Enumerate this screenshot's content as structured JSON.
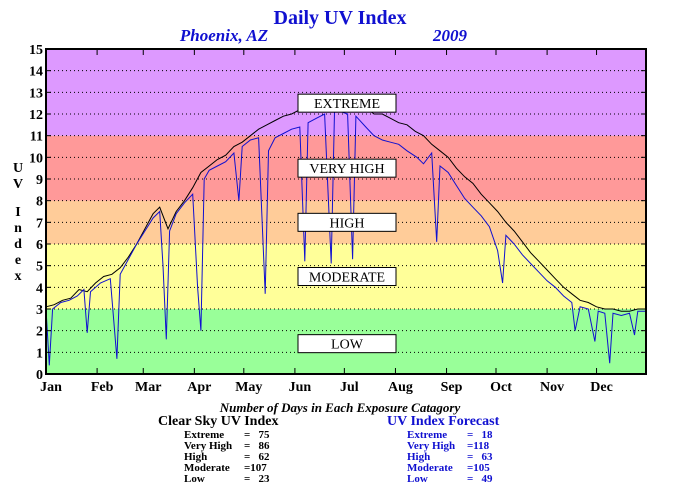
{
  "chart_data": {
    "type": "line",
    "title": "Daily UV Index",
    "location": "Phoenix, AZ",
    "year": "2009",
    "ylabel": "UV Index",
    "ylim": [
      0,
      15
    ],
    "yticks": [
      0,
      1,
      2,
      3,
      4,
      5,
      6,
      7,
      8,
      9,
      10,
      11,
      12,
      13,
      14,
      15
    ],
    "xlim": [
      1,
      365
    ],
    "months": [
      "Jan",
      "Feb",
      "Mar",
      "Apr",
      "May",
      "Jun",
      "Jul",
      "Aug",
      "Sep",
      "Oct",
      "Nov",
      "Dec"
    ],
    "month_start_days": [
      1,
      32,
      60,
      91,
      121,
      152,
      182,
      213,
      244,
      274,
      305,
      335
    ],
    "grid": "dotted horizontal",
    "bands": [
      {
        "label": "LOW",
        "from": 0,
        "to": 3,
        "color": "#99ff99",
        "label_at": 1.4
      },
      {
        "label": "MODERATE",
        "from": 3,
        "to": 6,
        "color": "#ffff99",
        "label_at": 4.5
      },
      {
        "label": "HIGH",
        "from": 6,
        "to": 8,
        "color": "#ffcc99",
        "label_at": 7.0
      },
      {
        "label": "VERY HIGH",
        "from": 8,
        "to": 11,
        "color": "#ff9999",
        "label_at": 9.5
      },
      {
        "label": "EXTREME",
        "from": 11,
        "to": 15,
        "color": "#dd99ff",
        "label_at": 12.5
      }
    ],
    "series": [
      {
        "name": "Clear Sky UV Index",
        "color": "#000000",
        "points": [
          [
            1,
            3.1
          ],
          [
            6,
            3.2
          ],
          [
            11,
            3.4
          ],
          [
            16,
            3.5
          ],
          [
            21,
            3.9
          ],
          [
            26,
            3.8
          ],
          [
            31,
            4.2
          ],
          [
            36,
            4.5
          ],
          [
            41,
            4.6
          ],
          [
            46,
            4.9
          ],
          [
            51,
            5.4
          ],
          [
            56,
            6.0
          ],
          [
            61,
            6.7
          ],
          [
            66,
            7.4
          ],
          [
            70,
            7.7
          ],
          [
            75,
            6.7
          ],
          [
            80,
            7.5
          ],
          [
            85,
            8.0
          ],
          [
            90,
            8.6
          ],
          [
            95,
            9.3
          ],
          [
            100,
            9.6
          ],
          [
            105,
            9.9
          ],
          [
            110,
            10.1
          ],
          [
            115,
            10.5
          ],
          [
            120,
            10.7
          ],
          [
            125,
            11.0
          ],
          [
            130,
            11.3
          ],
          [
            135,
            11.5
          ],
          [
            140,
            11.7
          ],
          [
            145,
            11.9
          ],
          [
            150,
            12.0
          ],
          [
            155,
            12.2
          ],
          [
            160,
            12.4
          ],
          [
            165,
            12.5
          ],
          [
            170,
            12.6
          ],
          [
            175,
            12.7
          ],
          [
            180,
            12.8
          ],
          [
            185,
            12.6
          ],
          [
            190,
            12.5
          ],
          [
            195,
            12.3
          ],
          [
            200,
            12.0
          ],
          [
            205,
            12.0
          ],
          [
            210,
            11.8
          ],
          [
            215,
            11.6
          ],
          [
            220,
            11.5
          ],
          [
            225,
            11.2
          ],
          [
            230,
            11.0
          ],
          [
            235,
            10.6
          ],
          [
            240,
            10.3
          ],
          [
            245,
            10.0
          ],
          [
            250,
            9.5
          ],
          [
            255,
            9.1
          ],
          [
            260,
            8.8
          ],
          [
            265,
            8.3
          ],
          [
            270,
            7.9
          ],
          [
            275,
            7.5
          ],
          [
            280,
            7.0
          ],
          [
            285,
            6.6
          ],
          [
            290,
            6.1
          ],
          [
            295,
            5.6
          ],
          [
            300,
            5.2
          ],
          [
            305,
            4.8
          ],
          [
            310,
            4.4
          ],
          [
            315,
            4.0
          ],
          [
            320,
            3.7
          ],
          [
            325,
            3.4
          ],
          [
            330,
            3.3
          ],
          [
            335,
            3.1
          ],
          [
            340,
            3.0
          ],
          [
            345,
            3.0
          ],
          [
            350,
            2.9
          ],
          [
            355,
            2.9
          ],
          [
            360,
            3.0
          ],
          [
            365,
            3.0
          ]
        ]
      },
      {
        "name": "UV Index Forecast",
        "color": "#1010d0",
        "points": [
          [
            1,
            3.0
          ],
          [
            3,
            0.4
          ],
          [
            5,
            3.0
          ],
          [
            10,
            3.3
          ],
          [
            15,
            3.4
          ],
          [
            20,
            3.6
          ],
          [
            24,
            3.9
          ],
          [
            26,
            1.9
          ],
          [
            28,
            3.8
          ],
          [
            34,
            4.2
          ],
          [
            40,
            4.4
          ],
          [
            44,
            0.7
          ],
          [
            46,
            4.6
          ],
          [
            51,
            5.3
          ],
          [
            56,
            6.0
          ],
          [
            61,
            6.6
          ],
          [
            66,
            7.2
          ],
          [
            70,
            7.5
          ],
          [
            72,
            5.0
          ],
          [
            74,
            1.6
          ],
          [
            76,
            6.6
          ],
          [
            80,
            7.4
          ],
          [
            85,
            7.9
          ],
          [
            90,
            8.3
          ],
          [
            93,
            4.0
          ],
          [
            95,
            2.0
          ],
          [
            97,
            9.0
          ],
          [
            100,
            9.4
          ],
          [
            105,
            9.6
          ],
          [
            110,
            9.8
          ],
          [
            115,
            10.2
          ],
          [
            118,
            8.0
          ],
          [
            120,
            10.5
          ],
          [
            125,
            10.8
          ],
          [
            130,
            10.9
          ],
          [
            134,
            3.7
          ],
          [
            136,
            10.3
          ],
          [
            140,
            10.9
          ],
          [
            145,
            11.1
          ],
          [
            150,
            11.3
          ],
          [
            155,
            11.4
          ],
          [
            158,
            5.2
          ],
          [
            160,
            11.6
          ],
          [
            165,
            11.8
          ],
          [
            170,
            12.0
          ],
          [
            174,
            5.1
          ],
          [
            176,
            12.1
          ],
          [
            180,
            12.1
          ],
          [
            184,
            12.0
          ],
          [
            187,
            5.3
          ],
          [
            189,
            11.9
          ],
          [
            195,
            11.4
          ],
          [
            200,
            11.0
          ],
          [
            205,
            10.8
          ],
          [
            210,
            10.7
          ],
          [
            215,
            10.6
          ],
          [
            220,
            10.3
          ],
          [
            226,
            10.0
          ],
          [
            230,
            9.7
          ],
          [
            235,
            10.2
          ],
          [
            238,
            6.1
          ],
          [
            240,
            9.6
          ],
          [
            245,
            9.3
          ],
          [
            250,
            8.7
          ],
          [
            255,
            8.1
          ],
          [
            260,
            7.7
          ],
          [
            265,
            7.3
          ],
          [
            270,
            6.8
          ],
          [
            275,
            5.7
          ],
          [
            278,
            4.2
          ],
          [
            280,
            6.4
          ],
          [
            285,
            6.0
          ],
          [
            290,
            5.5
          ],
          [
            295,
            5.1
          ],
          [
            300,
            4.7
          ],
          [
            305,
            4.3
          ],
          [
            310,
            4.0
          ],
          [
            315,
            3.6
          ],
          [
            320,
            3.3
          ],
          [
            322,
            2.0
          ],
          [
            325,
            3.1
          ],
          [
            330,
            3.0
          ],
          [
            334,
            1.5
          ],
          [
            336,
            2.9
          ],
          [
            340,
            2.8
          ],
          [
            343,
            0.5
          ],
          [
            345,
            2.8
          ],
          [
            350,
            2.7
          ],
          [
            355,
            2.8
          ],
          [
            358,
            1.8
          ],
          [
            360,
            2.9
          ],
          [
            365,
            2.9
          ]
        ]
      }
    ]
  },
  "stats": {
    "heading": "Number of Days in Each Exposure Catagory",
    "clear_sky": {
      "title": "Clear Sky UV Index",
      "rows": [
        {
          "label": "Extreme",
          "value": "=   75"
        },
        {
          "label": "Very High",
          "value": "=   86"
        },
        {
          "label": "High",
          "value": "=   62"
        },
        {
          "label": "Moderate",
          "value": "=107"
        },
        {
          "label": "Low",
          "value": "=   23"
        }
      ]
    },
    "forecast": {
      "title": "UV Index Forecast",
      "rows": [
        {
          "label": "Extreme",
          "value": "=   18"
        },
        {
          "label": "Very High",
          "value": "=118"
        },
        {
          "label": "High",
          "value": "=   63"
        },
        {
          "label": "Moderate",
          "value": "=105"
        },
        {
          "label": "Low",
          "value": "=   49"
        }
      ]
    }
  }
}
